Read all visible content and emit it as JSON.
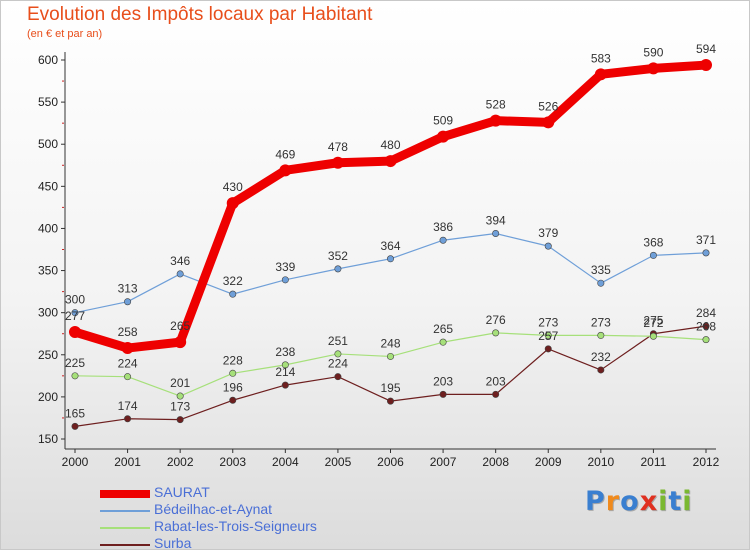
{
  "chart_data": {
    "type": "line",
    "title": "Evolution des Impôts locaux par Habitant",
    "subtitle": "(en € et par an)",
    "xlabel": "",
    "ylabel": "",
    "x": [
      "2000",
      "2001",
      "2002",
      "2003",
      "2004",
      "2005",
      "2006",
      "2007",
      "2008",
      "2009",
      "2010",
      "2011",
      "2012"
    ],
    "ylim": [
      150,
      600
    ],
    "yticks": [
      150,
      200,
      250,
      300,
      350,
      400,
      450,
      500,
      550,
      600
    ],
    "grid": false,
    "legend_position": "bottom-left",
    "series": [
      {
        "name": "SAURAT",
        "color": "#ee0000",
        "values": [
          277,
          258,
          265,
          430,
          469,
          478,
          480,
          509,
          528,
          526,
          583,
          590,
          594
        ],
        "labels": [
          "277",
          "258",
          "265",
          "430",
          "469",
          "478",
          "480",
          "509",
          "528",
          "526",
          "583",
          "590",
          "594"
        ]
      },
      {
        "name": "Bédeilhac-et-Aynat",
        "color": "#6f9fd8",
        "values": [
          300,
          313,
          346,
          322,
          339,
          352,
          364,
          386,
          394,
          379,
          335,
          368,
          371
        ],
        "labels": [
          "300",
          "313",
          "346",
          "322",
          "339",
          "352",
          "364",
          "386",
          "394",
          "379",
          "335",
          "368",
          "371"
        ]
      },
      {
        "name": "Rabat-les-Trois-Seigneurs",
        "color": "#a6e07a",
        "values": [
          225,
          224,
          201,
          228,
          238,
          251,
          248,
          265,
          276,
          273,
          273,
          272,
          268
        ],
        "labels": [
          "225",
          "224",
          "201",
          "228",
          "238",
          "251",
          "248",
          "265",
          "276",
          "273",
          "273",
          "272",
          "268"
        ]
      },
      {
        "name": "Surba",
        "color": "#6e1f1f",
        "values": [
          165,
          174,
          173,
          196,
          214,
          224,
          195,
          203,
          203,
          257,
          232,
          275,
          284
        ],
        "labels": [
          "165",
          "174",
          "173",
          "196",
          "214",
          "224",
          "195",
          "203",
          "203",
          "257",
          "232",
          "275",
          "284"
        ]
      }
    ]
  },
  "logo": {
    "letters": [
      "P",
      "r",
      "o",
      "x",
      "i",
      "t",
      "i"
    ]
  }
}
